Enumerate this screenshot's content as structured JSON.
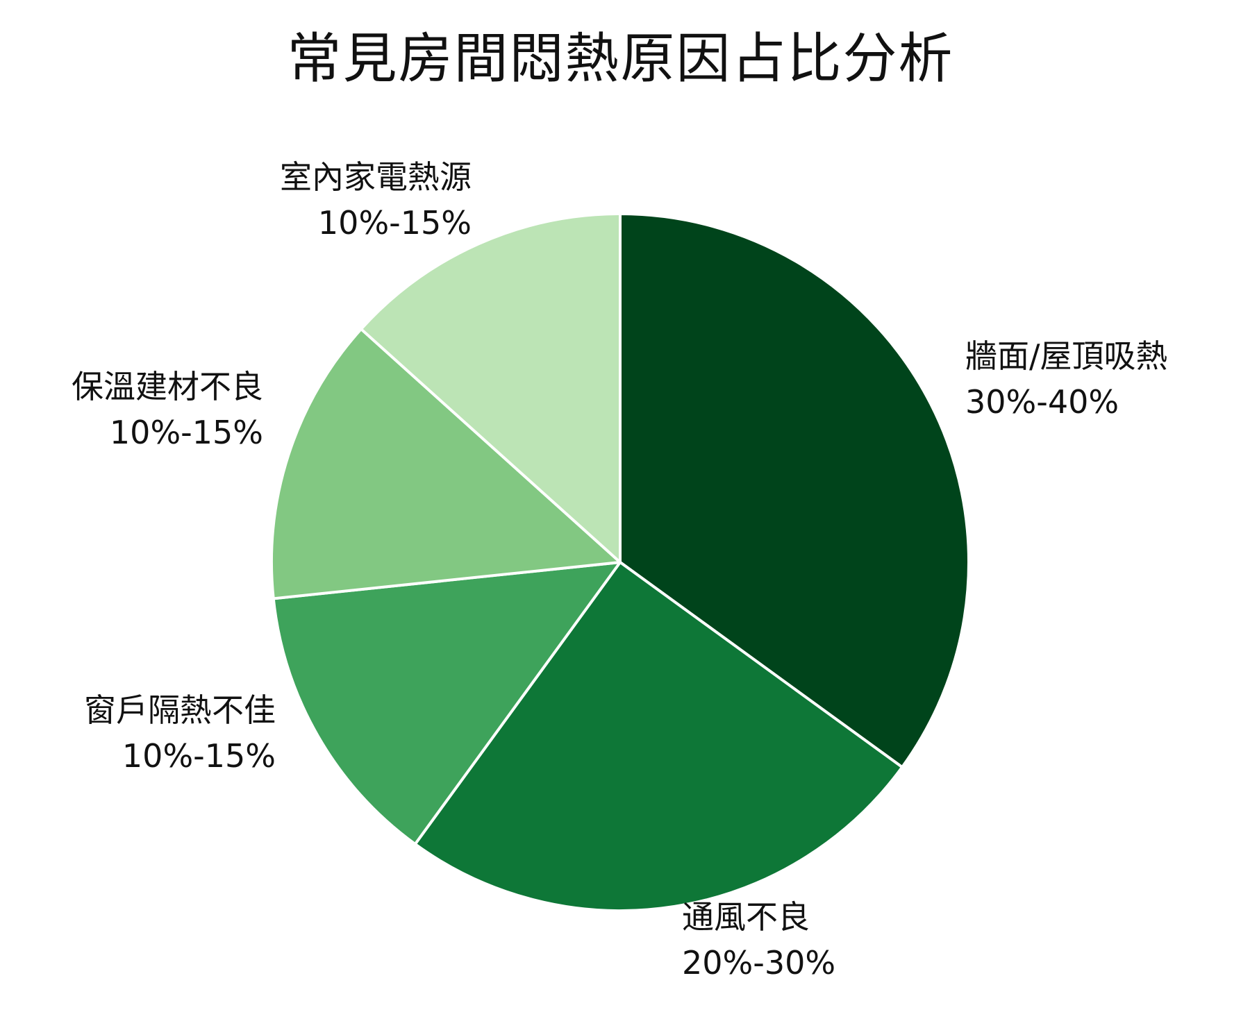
{
  "chart_data": {
    "type": "pie",
    "title": "常見房間悶熱原因占比分析",
    "slices": [
      {
        "label": "牆面/屋頂吸熱",
        "range": "30%-40%",
        "value": 35,
        "color": "#00441b"
      },
      {
        "label": "通風不良",
        "range": "20%-30%",
        "value": 25,
        "color": "#0e7737"
      },
      {
        "label": "窗戶隔熱不佳",
        "range": "10%-15%",
        "value": 13.33,
        "color": "#3ea35b"
      },
      {
        "label": "保溫建材不良",
        "range": "10%-15%",
        "value": 13.33,
        "color": "#82c882"
      },
      {
        "label": "室內家電熱源",
        "range": "10%-15%",
        "value": 13.33,
        "color": "#bce4b5"
      }
    ],
    "start_angle": "top",
    "direction": "clockwise",
    "legend": "none"
  }
}
